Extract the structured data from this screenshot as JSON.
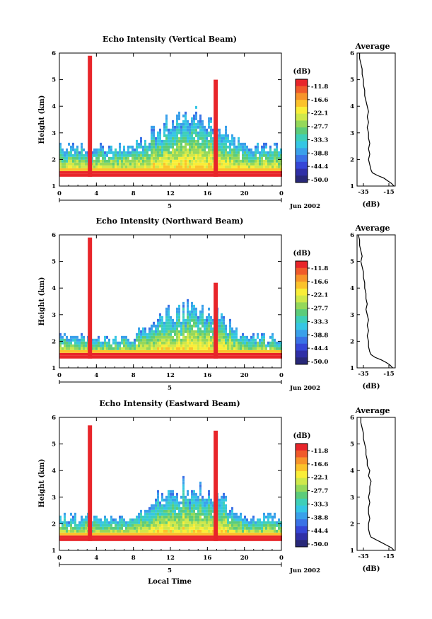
{
  "colorbar": {
    "unit": "(dB)",
    "levels": [
      "-11.8",
      "-16.6",
      "-22.1",
      "-27.7",
      "-33.3",
      "-38.8",
      "-44.4",
      "-50.0"
    ],
    "colors": [
      "#e8252a",
      "#f05a2a",
      "#f7942a",
      "#fbc22b",
      "#f9ee38",
      "#cfe84a",
      "#94d85a",
      "#5ccc7a",
      "#3ecfb8",
      "#35c6e4",
      "#3aa0ea",
      "#3a72e6",
      "#3546d6",
      "#2f2fa6",
      "#282878"
    ]
  },
  "chart_data": [
    {
      "type": "heatmap",
      "title": "Echo Intensity (Vertical Beam)",
      "ylabel": "Height (km)",
      "ylim": [
        1,
        6
      ],
      "yticks": [
        "1",
        "2",
        "3",
        "4",
        "5",
        "6"
      ],
      "xlim": [
        0,
        24
      ],
      "xticks": [
        "0",
        "4",
        "8",
        "12",
        "16",
        "20",
        "0"
      ],
      "day": "5",
      "month": "Jun 2002",
      "features": {
        "spikes_hours": [
          3.3,
          16.9
        ],
        "spike_tops_km": [
          5.9,
          5.0
        ],
        "base_km": 1.35,
        "layer_top_km": 2.4
      },
      "average": {
        "title": "Average",
        "xlabel": "(dB)",
        "xticks": [
          "-35",
          "-15"
        ],
        "xlim": [
          -40,
          -10
        ],
        "height_km": [
          1.0,
          1.1,
          1.2,
          1.3,
          1.4,
          1.5,
          1.6,
          1.8,
          2.0,
          2.2,
          2.4,
          2.6,
          2.8,
          3.0,
          3.2,
          3.4,
          3.6,
          3.8,
          4.0,
          4.2,
          4.4,
          4.6,
          4.8,
          5.0,
          5.2,
          5.4,
          5.6,
          5.8,
          6.0
        ],
        "db": [
          -11,
          -13,
          -16,
          -19,
          -24,
          -28,
          -29,
          -30,
          -31,
          -30,
          -31,
          -30,
          -31,
          -31,
          -32,
          -31,
          -32,
          -31,
          -32,
          -33,
          -34,
          -34,
          -35,
          -35,
          -36,
          -36,
          -37,
          -38,
          -38
        ]
      }
    },
    {
      "type": "heatmap",
      "title": "Echo Intensity (Northward Beam)",
      "ylabel": "Height (km)",
      "ylim": [
        1,
        6
      ],
      "yticks": [
        "1",
        "2",
        "3",
        "4",
        "5",
        "6"
      ],
      "xlim": [
        0,
        24
      ],
      "xticks": [
        "0",
        "4",
        "8",
        "12",
        "16",
        "20",
        "0"
      ],
      "day": "5",
      "month": "Jun 2002",
      "features": {
        "spikes_hours": [
          3.3,
          16.9
        ],
        "spike_tops_km": [
          5.9,
          4.2
        ],
        "base_km": 1.35,
        "layer_top_km": 2.1
      },
      "average": {
        "title": "Average",
        "xlabel": "(dB)",
        "xticks": [
          "-35",
          "-15"
        ],
        "xlim": [
          -40,
          -10
        ],
        "height_km": [
          1.0,
          1.1,
          1.2,
          1.3,
          1.4,
          1.5,
          1.6,
          1.8,
          2.0,
          2.2,
          2.4,
          2.6,
          2.8,
          3.0,
          3.2,
          3.4,
          3.6,
          3.8,
          4.0,
          4.2,
          4.4,
          4.6,
          4.8,
          5.0,
          5.2,
          5.4,
          5.6,
          5.8,
          6.0
        ],
        "db": [
          -12,
          -14,
          -17,
          -21,
          -26,
          -29,
          -30,
          -31,
          -31,
          -32,
          -31,
          -32,
          -31,
          -32,
          -33,
          -32,
          -33,
          -33,
          -34,
          -34,
          -35,
          -35,
          -36,
          -37,
          -36,
          -37,
          -38,
          -38,
          -39
        ]
      }
    },
    {
      "type": "heatmap",
      "title": "Echo Intensity (Eastward Beam)",
      "ylabel": "Height (km)",
      "ylim": [
        1,
        6
      ],
      "yticks": [
        "1",
        "2",
        "3",
        "4",
        "5",
        "6"
      ],
      "xlim": [
        0,
        24
      ],
      "xticks": [
        "0",
        "4",
        "8",
        "12",
        "16",
        "20",
        "0"
      ],
      "day": "5",
      "month": "Jun 2002",
      "xlabel": "Local Time",
      "features": {
        "spikes_hours": [
          3.3,
          16.9
        ],
        "spike_tops_km": [
          5.7,
          5.5
        ],
        "base_km": 1.35,
        "layer_top_km": 2.2
      },
      "average": {
        "title": "Average",
        "xlabel": "(dB)",
        "xticks": [
          "-35",
          "-15"
        ],
        "xlim": [
          -40,
          -10
        ],
        "height_km": [
          1.0,
          1.1,
          1.2,
          1.3,
          1.4,
          1.5,
          1.6,
          1.8,
          2.0,
          2.2,
          2.4,
          2.6,
          2.8,
          3.0,
          3.2,
          3.4,
          3.6,
          3.8,
          4.0,
          4.2,
          4.4,
          4.6,
          4.8,
          5.0,
          5.2,
          5.4,
          5.6,
          5.8,
          6.0
        ],
        "db": [
          -11,
          -13,
          -17,
          -21,
          -25,
          -29,
          -30,
          -31,
          -31,
          -30,
          -31,
          -31,
          -30,
          -31,
          -30,
          -30,
          -29,
          -31,
          -30,
          -32,
          -32,
          -33,
          -33,
          -34,
          -35,
          -35,
          -36,
          -37,
          -37
        ]
      }
    }
  ]
}
